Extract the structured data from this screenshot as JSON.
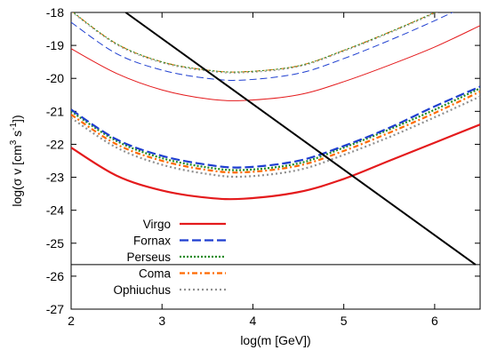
{
  "chart_data": {
    "type": "line",
    "xlabel": "log(m [GeV])",
    "ylabel": {
      "base": "log(σ v [cm",
      "exp1": "3",
      "mid": " s",
      "exp2": "-1",
      "end": "])"
    },
    "xlim": [
      2,
      6.5
    ],
    "ylim": [
      -27,
      -18
    ],
    "xticks": [
      2,
      3,
      4,
      5,
      6
    ],
    "yticks": [
      -18,
      -19,
      -20,
      -21,
      -22,
      -23,
      -24,
      -25,
      -26,
      -27
    ],
    "grid": false,
    "legend_position": "bottom-left",
    "colors": {
      "Virgo": "#e41a1c",
      "Fornax": "#1f3fd0",
      "Perseus": "#228b22",
      "Coma": "#ff6a00",
      "Ophiuchus": "#909090",
      "diagonal": "#000000",
      "horizontal": "#000000"
    },
    "legend": [
      "Virgo",
      "Fornax",
      "Perseus",
      "Coma",
      "Ophiuchus"
    ],
    "series": [
      {
        "name": "Virgo",
        "group": "thick",
        "style": "solid",
        "points": [
          [
            2,
            -22.1
          ],
          [
            2.5,
            -22.95
          ],
          [
            3,
            -23.4
          ],
          [
            3.5,
            -23.62
          ],
          [
            3.9,
            -23.65
          ],
          [
            4.5,
            -23.45
          ],
          [
            5,
            -23.05
          ],
          [
            5.5,
            -22.5
          ],
          [
            6,
            -21.95
          ],
          [
            6.5,
            -21.4
          ]
        ]
      },
      {
        "name": "Fornax",
        "group": "thick",
        "style": "dashed",
        "points": [
          [
            2,
            -20.95
          ],
          [
            2.5,
            -21.85
          ],
          [
            3,
            -22.35
          ],
          [
            3.5,
            -22.62
          ],
          [
            3.9,
            -22.7
          ],
          [
            4.5,
            -22.5
          ],
          [
            5,
            -22.05
          ],
          [
            5.5,
            -21.5
          ],
          [
            6,
            -20.85
          ],
          [
            6.5,
            -20.25
          ]
        ]
      },
      {
        "name": "Perseus",
        "group": "thick",
        "style": "dotted",
        "points": [
          [
            2,
            -21.0
          ],
          [
            2.5,
            -21.9
          ],
          [
            3,
            -22.42
          ],
          [
            3.5,
            -22.7
          ],
          [
            3.9,
            -22.78
          ],
          [
            4.5,
            -22.58
          ],
          [
            5,
            -22.1
          ],
          [
            5.5,
            -21.55
          ],
          [
            6,
            -20.95
          ],
          [
            6.5,
            -20.3
          ]
        ]
      },
      {
        "name": "Coma",
        "group": "thick",
        "style": "dashdot",
        "points": [
          [
            2,
            -21.1
          ],
          [
            2.5,
            -22.0
          ],
          [
            3,
            -22.5
          ],
          [
            3.5,
            -22.78
          ],
          [
            3.9,
            -22.85
          ],
          [
            4.5,
            -22.65
          ],
          [
            5,
            -22.2
          ],
          [
            5.5,
            -21.65
          ],
          [
            6,
            -21.05
          ],
          [
            6.5,
            -20.4
          ]
        ]
      },
      {
        "name": "Ophiuchus",
        "group": "thick",
        "style": "dotgray",
        "points": [
          [
            2,
            -21.2
          ],
          [
            2.5,
            -22.1
          ],
          [
            3,
            -22.62
          ],
          [
            3.5,
            -22.9
          ],
          [
            3.9,
            -22.98
          ],
          [
            4.5,
            -22.78
          ],
          [
            5,
            -22.32
          ],
          [
            5.5,
            -21.78
          ],
          [
            6,
            -21.18
          ],
          [
            6.5,
            -20.55
          ]
        ]
      },
      {
        "name": "Virgo",
        "group": "thin",
        "style": "solid",
        "points": [
          [
            2,
            -19.1
          ],
          [
            2.5,
            -19.85
          ],
          [
            3,
            -20.35
          ],
          [
            3.5,
            -20.62
          ],
          [
            3.9,
            -20.67
          ],
          [
            4.5,
            -20.5
          ],
          [
            5,
            -20.1
          ],
          [
            5.5,
            -19.6
          ],
          [
            6,
            -19.05
          ],
          [
            6.5,
            -18.4
          ]
        ]
      },
      {
        "name": "Fornax",
        "group": "thin",
        "style": "dashed",
        "points": [
          [
            2,
            -18.3
          ],
          [
            2.5,
            -19.25
          ],
          [
            3,
            -19.75
          ],
          [
            3.5,
            -20.0
          ],
          [
            3.9,
            -20.05
          ],
          [
            4.5,
            -19.85
          ],
          [
            5,
            -19.4
          ],
          [
            5.5,
            -18.85
          ],
          [
            6,
            -18.25
          ],
          [
            6.5,
            -17.6
          ]
        ]
      },
      {
        "name": "Perseus",
        "group": "thin",
        "style": "dotted",
        "points": [
          [
            2,
            -17.95
          ],
          [
            2.5,
            -18.95
          ],
          [
            3,
            -19.5
          ],
          [
            3.5,
            -19.75
          ],
          [
            3.9,
            -19.8
          ],
          [
            4.5,
            -19.62
          ],
          [
            5,
            -19.15
          ],
          [
            5.5,
            -18.6
          ],
          [
            6,
            -18.0
          ],
          [
            6.5,
            -17.35
          ]
        ]
      },
      {
        "name": "Coma",
        "group": "thin",
        "style": "dashdot",
        "points": [
          [
            2,
            -17.95
          ],
          [
            2.5,
            -18.95
          ],
          [
            3,
            -19.5
          ],
          [
            3.5,
            -19.75
          ],
          [
            3.9,
            -19.8
          ],
          [
            4.5,
            -19.62
          ],
          [
            5,
            -19.15
          ],
          [
            5.5,
            -18.6
          ],
          [
            6,
            -18.0
          ],
          [
            6.5,
            -17.35
          ]
        ]
      },
      {
        "name": "Ophiuchus",
        "group": "thin",
        "style": "dotgray",
        "points": [
          [
            2,
            -17.98
          ],
          [
            2.5,
            -18.98
          ],
          [
            3,
            -19.53
          ],
          [
            3.5,
            -19.78
          ],
          [
            3.9,
            -19.83
          ],
          [
            4.5,
            -19.65
          ],
          [
            5,
            -19.18
          ],
          [
            5.5,
            -18.63
          ],
          [
            6,
            -18.03
          ],
          [
            6.5,
            -17.38
          ]
        ]
      }
    ],
    "reference_lines": [
      {
        "kind": "diagonal",
        "points": [
          [
            2.6,
            -18.0
          ],
          [
            6.45,
            -25.65
          ]
        ]
      },
      {
        "kind": "horizontal",
        "y": -25.65
      }
    ]
  }
}
